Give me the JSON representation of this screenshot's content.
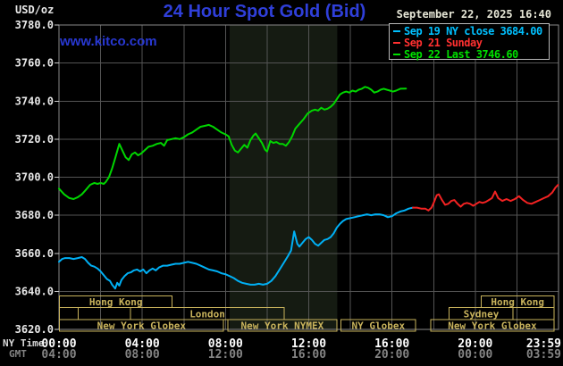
{
  "header": {
    "title": "24 Hour Spot Gold (Bid)",
    "datetime": "September 22, 2025 16:40",
    "watermark": "www.kitco.com",
    "unit_label": "USD/oz"
  },
  "legend": {
    "items": [
      {
        "label": "Sep 19 NY close 3684.00",
        "color": "#00c0ff"
      },
      {
        "label": "Sep 21 Sunday",
        "color": "#ff3030"
      },
      {
        "label": "Sep 22 Last 3746.60",
        "color": "#00e000"
      }
    ]
  },
  "colors": {
    "background": "#000000",
    "grid": "#545454",
    "plot_border": "#8a8a8a",
    "nymex_band": "#151b12",
    "session_gold": "#c9b35c",
    "axis_text": "#e8e8e8",
    "tick_text": "#ffffff",
    "gmt_text": "#848484",
    "title_blue": "#2f3fd9"
  },
  "axes": {
    "y_ticks": [
      "3780.0",
      "3760.0",
      "3740.0",
      "3720.0",
      "3700.0",
      "3680.0",
      "3660.0",
      "3640.0",
      "3620.0"
    ],
    "x_tick_hours": [
      0,
      4,
      8,
      12,
      16,
      20,
      24
    ],
    "x_rows": [
      {
        "name": "NY Time",
        "labels": [
          "00:00",
          "04:00",
          "08:00",
          "12:00",
          "16:00",
          "20:00",
          "23:59"
        ]
      },
      {
        "name": "GMT",
        "labels": [
          "04:00",
          "08:00",
          "12:00",
          "16:00",
          "20:00",
          "00:00",
          "03:59"
        ]
      }
    ]
  },
  "sessions": {
    "rows": [
      {
        "boxes": [
          {
            "t1": 0.03,
            "t2": 5.44,
            "label": "Hong Kong"
          },
          {
            "t1": 20.28,
            "t2": 23.79,
            "label": "Hong Kong"
          }
        ]
      },
      {
        "boxes": [
          {
            "t1": 0.03,
            "t2": 0.93,
            "label": ""
          },
          {
            "t1": 0.93,
            "t2": 3.43,
            "label": ""
          },
          {
            "t1": 3.43,
            "t2": 10.83,
            "label": "London"
          },
          {
            "t1": 18.75,
            "t2": 21.82,
            "label": "Sydney"
          },
          {
            "t1": 21.82,
            "t2": 23.79,
            "label": ""
          }
        ]
      },
      {
        "boxes": [
          {
            "t1": 0.03,
            "t2": 7.9,
            "label": "New York Globex"
          },
          {
            "t1": 8.11,
            "t2": 13.35,
            "label": "New York NYMEX"
          },
          {
            "t1": 13.55,
            "t2": 17.13,
            "label": "NY Globex"
          },
          {
            "t1": 17.85,
            "t2": 23.79,
            "label": "New York Globex"
          }
        ]
      }
    ]
  },
  "chart_data": {
    "type": "line",
    "title": "24 Hour Spot Gold (Bid)",
    "ylabel": "USD/oz",
    "ylim": [
      3620,
      3780
    ],
    "xlim_hours": [
      0,
      24
    ],
    "grid": {
      "x_step_hours": 2,
      "y_step": 20
    },
    "highlight_band_hours": [
      8.2,
      13.37
    ],
    "series": [
      {
        "name": "Sep 19 NY close",
        "close": 3684.0,
        "color": "#00b0f5",
        "points": [
          [
            0,
            3655.5
          ],
          [
            0.15,
            3657
          ],
          [
            0.3,
            3657.5
          ],
          [
            0.5,
            3657.5
          ],
          [
            0.7,
            3657
          ],
          [
            0.9,
            3657.5
          ],
          [
            1.1,
            3658
          ],
          [
            1.25,
            3657
          ],
          [
            1.4,
            3655
          ],
          [
            1.55,
            3653.5
          ],
          [
            1.7,
            3653
          ],
          [
            1.85,
            3652
          ],
          [
            2,
            3650.5
          ],
          [
            2.15,
            3648.5
          ],
          [
            2.3,
            3646.5
          ],
          [
            2.45,
            3645.5
          ],
          [
            2.55,
            3643.5
          ],
          [
            2.7,
            3641.5
          ],
          [
            2.8,
            3644.5
          ],
          [
            2.9,
            3643
          ],
          [
            3,
            3646
          ],
          [
            3.15,
            3648
          ],
          [
            3.3,
            3649.5
          ],
          [
            3.45,
            3650
          ],
          [
            3.6,
            3651
          ],
          [
            3.75,
            3651.5
          ],
          [
            3.9,
            3650.5
          ],
          [
            4.05,
            3651.5
          ],
          [
            4.2,
            3649.5
          ],
          [
            4.35,
            3651
          ],
          [
            4.5,
            3652
          ],
          [
            4.65,
            3651
          ],
          [
            4.8,
            3652.5
          ],
          [
            5,
            3653.5
          ],
          [
            5.2,
            3653.5
          ],
          [
            5.4,
            3654
          ],
          [
            5.6,
            3654.5
          ],
          [
            5.8,
            3654.5
          ],
          [
            6,
            3655
          ],
          [
            6.2,
            3655.5
          ],
          [
            6.4,
            3655
          ],
          [
            6.6,
            3654.5
          ],
          [
            6.8,
            3653.5
          ],
          [
            7,
            3652.5
          ],
          [
            7.2,
            3651.5
          ],
          [
            7.4,
            3651
          ],
          [
            7.6,
            3650.5
          ],
          [
            7.8,
            3649.5
          ],
          [
            8,
            3649
          ],
          [
            8.2,
            3648
          ],
          [
            8.4,
            3647
          ],
          [
            8.6,
            3645.5
          ],
          [
            8.8,
            3644.5
          ],
          [
            9,
            3644
          ],
          [
            9.2,
            3643.5
          ],
          [
            9.4,
            3643.5
          ],
          [
            9.6,
            3644
          ],
          [
            9.8,
            3643.5
          ],
          [
            10,
            3644
          ],
          [
            10.2,
            3645.5
          ],
          [
            10.4,
            3648
          ],
          [
            10.6,
            3651.5
          ],
          [
            10.8,
            3655
          ],
          [
            11,
            3658.5
          ],
          [
            11.15,
            3661.5
          ],
          [
            11.3,
            3671.5
          ],
          [
            11.45,
            3665
          ],
          [
            11.55,
            3663.5
          ],
          [
            11.7,
            3665.5
          ],
          [
            11.85,
            3667.5
          ],
          [
            12,
            3668.5
          ],
          [
            12.15,
            3667
          ],
          [
            12.3,
            3665
          ],
          [
            12.45,
            3664
          ],
          [
            12.6,
            3665.5
          ],
          [
            12.75,
            3667
          ],
          [
            12.9,
            3667.5
          ],
          [
            13.05,
            3668.5
          ],
          [
            13.2,
            3670.5
          ],
          [
            13.35,
            3673.5
          ],
          [
            13.5,
            3675.5
          ],
          [
            13.65,
            3677
          ],
          [
            13.8,
            3678
          ],
          [
            14,
            3678.5
          ],
          [
            14.2,
            3679
          ],
          [
            14.4,
            3679.5
          ],
          [
            14.6,
            3680
          ],
          [
            14.8,
            3680.5
          ],
          [
            15,
            3680
          ],
          [
            15.2,
            3680.5
          ],
          [
            15.4,
            3680.5
          ],
          [
            15.6,
            3680
          ],
          [
            15.8,
            3679
          ],
          [
            16,
            3679.5
          ],
          [
            16.2,
            3681
          ],
          [
            16.4,
            3682
          ],
          [
            16.6,
            3682.5
          ],
          [
            16.8,
            3683.5
          ],
          [
            17,
            3684
          ]
        ]
      },
      {
        "name": "Sep 21 Sunday",
        "color": "#f32222",
        "points": [
          [
            17,
            3684
          ],
          [
            17.2,
            3684
          ],
          [
            17.4,
            3683.5
          ],
          [
            17.6,
            3683.5
          ],
          [
            17.75,
            3682.5
          ],
          [
            17.9,
            3684
          ],
          [
            18,
            3686.5
          ],
          [
            18.15,
            3690.5
          ],
          [
            18.25,
            3691
          ],
          [
            18.4,
            3688
          ],
          [
            18.55,
            3685.5
          ],
          [
            18.7,
            3686
          ],
          [
            18.85,
            3687.5
          ],
          [
            19,
            3688
          ],
          [
            19.15,
            3686
          ],
          [
            19.3,
            3684.5
          ],
          [
            19.45,
            3686
          ],
          [
            19.6,
            3686.5
          ],
          [
            19.75,
            3686
          ],
          [
            19.9,
            3685
          ],
          [
            20.05,
            3686
          ],
          [
            20.2,
            3687
          ],
          [
            20.35,
            3686.5
          ],
          [
            20.5,
            3687
          ],
          [
            20.65,
            3688
          ],
          [
            20.8,
            3689
          ],
          [
            20.95,
            3692.5
          ],
          [
            21.1,
            3689
          ],
          [
            21.3,
            3687.5
          ],
          [
            21.5,
            3688.5
          ],
          [
            21.7,
            3687.5
          ],
          [
            21.9,
            3688.5
          ],
          [
            22.1,
            3690
          ],
          [
            22.3,
            3688
          ],
          [
            22.5,
            3686.5
          ],
          [
            22.7,
            3686
          ],
          [
            22.9,
            3687
          ],
          [
            23.1,
            3688
          ],
          [
            23.3,
            3689
          ],
          [
            23.5,
            3690
          ],
          [
            23.7,
            3692
          ],
          [
            23.85,
            3694.5
          ],
          [
            23.98,
            3696
          ]
        ]
      },
      {
        "name": "Sep 22 Last",
        "last": 3746.6,
        "color": "#00d600",
        "points": [
          [
            0,
            3694
          ],
          [
            0.25,
            3691
          ],
          [
            0.5,
            3689
          ],
          [
            0.7,
            3688.5
          ],
          [
            0.9,
            3689.5
          ],
          [
            1.1,
            3691
          ],
          [
            1.3,
            3693.5
          ],
          [
            1.5,
            3696
          ],
          [
            1.7,
            3697
          ],
          [
            1.85,
            3696.5
          ],
          [
            2,
            3697
          ],
          [
            2.15,
            3696.5
          ],
          [
            2.25,
            3697.5
          ],
          [
            2.4,
            3700
          ],
          [
            2.55,
            3704.5
          ],
          [
            2.7,
            3710
          ],
          [
            2.9,
            3717.5
          ],
          [
            3.05,
            3714
          ],
          [
            3.2,
            3710.5
          ],
          [
            3.35,
            3709
          ],
          [
            3.5,
            3712
          ],
          [
            3.65,
            3713
          ],
          [
            3.8,
            3711.5
          ],
          [
            3.95,
            3712.5
          ],
          [
            4.1,
            3714
          ],
          [
            4.3,
            3716
          ],
          [
            4.5,
            3716.5
          ],
          [
            4.7,
            3717.5
          ],
          [
            4.9,
            3718
          ],
          [
            5.05,
            3716.5
          ],
          [
            5.2,
            3719.5
          ],
          [
            5.4,
            3720
          ],
          [
            5.6,
            3720.5
          ],
          [
            5.8,
            3720
          ],
          [
            6,
            3721
          ],
          [
            6.2,
            3722.5
          ],
          [
            6.4,
            3723.5
          ],
          [
            6.6,
            3725
          ],
          [
            6.8,
            3726.5
          ],
          [
            7,
            3727
          ],
          [
            7.2,
            3727.5
          ],
          [
            7.4,
            3726.5
          ],
          [
            7.6,
            3725
          ],
          [
            7.8,
            3723.5
          ],
          [
            8,
            3722.5
          ],
          [
            8.15,
            3721.5
          ],
          [
            8.3,
            3717
          ],
          [
            8.45,
            3714
          ],
          [
            8.6,
            3713
          ],
          [
            8.75,
            3715
          ],
          [
            8.9,
            3717
          ],
          [
            9.05,
            3715.5
          ],
          [
            9.2,
            3719.5
          ],
          [
            9.35,
            3722
          ],
          [
            9.45,
            3723
          ],
          [
            9.6,
            3720.5
          ],
          [
            9.75,
            3718
          ],
          [
            9.9,
            3714.5
          ],
          [
            10,
            3713.5
          ],
          [
            10.15,
            3719
          ],
          [
            10.3,
            3718
          ],
          [
            10.45,
            3718.5
          ],
          [
            10.6,
            3717.5
          ],
          [
            10.75,
            3717.5
          ],
          [
            10.9,
            3716.5
          ],
          [
            11.05,
            3718.5
          ],
          [
            11.2,
            3721.5
          ],
          [
            11.35,
            3725.5
          ],
          [
            11.55,
            3728
          ],
          [
            11.75,
            3730.5
          ],
          [
            11.95,
            3733.5
          ],
          [
            12.15,
            3735
          ],
          [
            12.3,
            3735.5
          ],
          [
            12.45,
            3735
          ],
          [
            12.6,
            3736.5
          ],
          [
            12.75,
            3735.5
          ],
          [
            12.9,
            3736
          ],
          [
            13.05,
            3737
          ],
          [
            13.2,
            3738.5
          ],
          [
            13.35,
            3741
          ],
          [
            13.5,
            3743.5
          ],
          [
            13.65,
            3744.5
          ],
          [
            13.8,
            3745
          ],
          [
            13.95,
            3744.5
          ],
          [
            14.1,
            3745.5
          ],
          [
            14.25,
            3745
          ],
          [
            14.4,
            3746
          ],
          [
            14.55,
            3746.5
          ],
          [
            14.7,
            3747.5
          ],
          [
            14.85,
            3747
          ],
          [
            15,
            3746
          ],
          [
            15.15,
            3744.5
          ],
          [
            15.3,
            3745
          ],
          [
            15.45,
            3746
          ],
          [
            15.6,
            3746.5
          ],
          [
            15.75,
            3746
          ],
          [
            15.9,
            3745.5
          ],
          [
            16.05,
            3745
          ],
          [
            16.2,
            3745.5
          ],
          [
            16.4,
            3746.5
          ],
          [
            16.67,
            3746.6
          ]
        ]
      }
    ]
  }
}
